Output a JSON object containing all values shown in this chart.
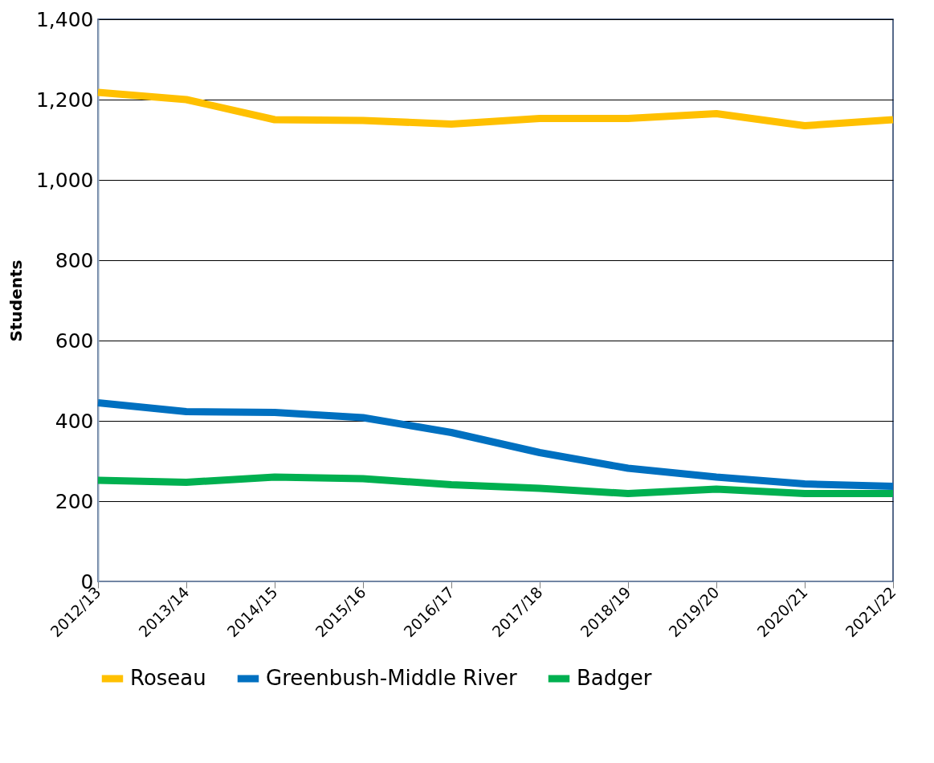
{
  "chart_data": {
    "type": "line",
    "ylabel": "Students",
    "categories": [
      "2012/13",
      "2013/14",
      "2014/15",
      "2015/16",
      "2016/17",
      "2017/18",
      "2018/19",
      "2019/20",
      "2020/21",
      "2021/22"
    ],
    "series": [
      {
        "name": "Roseau",
        "color": "#ffc000",
        "values": [
          1218,
          1200,
          1150,
          1148,
          1139,
          1153,
          1153,
          1165,
          1135,
          1150
        ]
      },
      {
        "name": "Greenbush-Middle River",
        "color": "#0070c0",
        "values": [
          445,
          423,
          421,
          408,
          371,
          321,
          282,
          260,
          243,
          237
        ]
      },
      {
        "name": "Badger",
        "color": "#00b050",
        "values": [
          252,
          247,
          260,
          256,
          241,
          232,
          219,
          230,
          219,
          219
        ]
      }
    ],
    "ylim": [
      0,
      1400
    ],
    "yticks": [
      {
        "value": 0,
        "label": "0"
      },
      {
        "value": 200,
        "label": "200"
      },
      {
        "value": 400,
        "label": "400"
      },
      {
        "value": 600,
        "label": "600"
      },
      {
        "value": 800,
        "label": "800"
      },
      {
        "value": 1000,
        "label": "1,000"
      },
      {
        "value": 1200,
        "label": "1,200"
      },
      {
        "value": 1400,
        "label": "1,400"
      }
    ],
    "grid": "y",
    "legend": "bottom",
    "marker": "none",
    "line_style": "solid"
  }
}
